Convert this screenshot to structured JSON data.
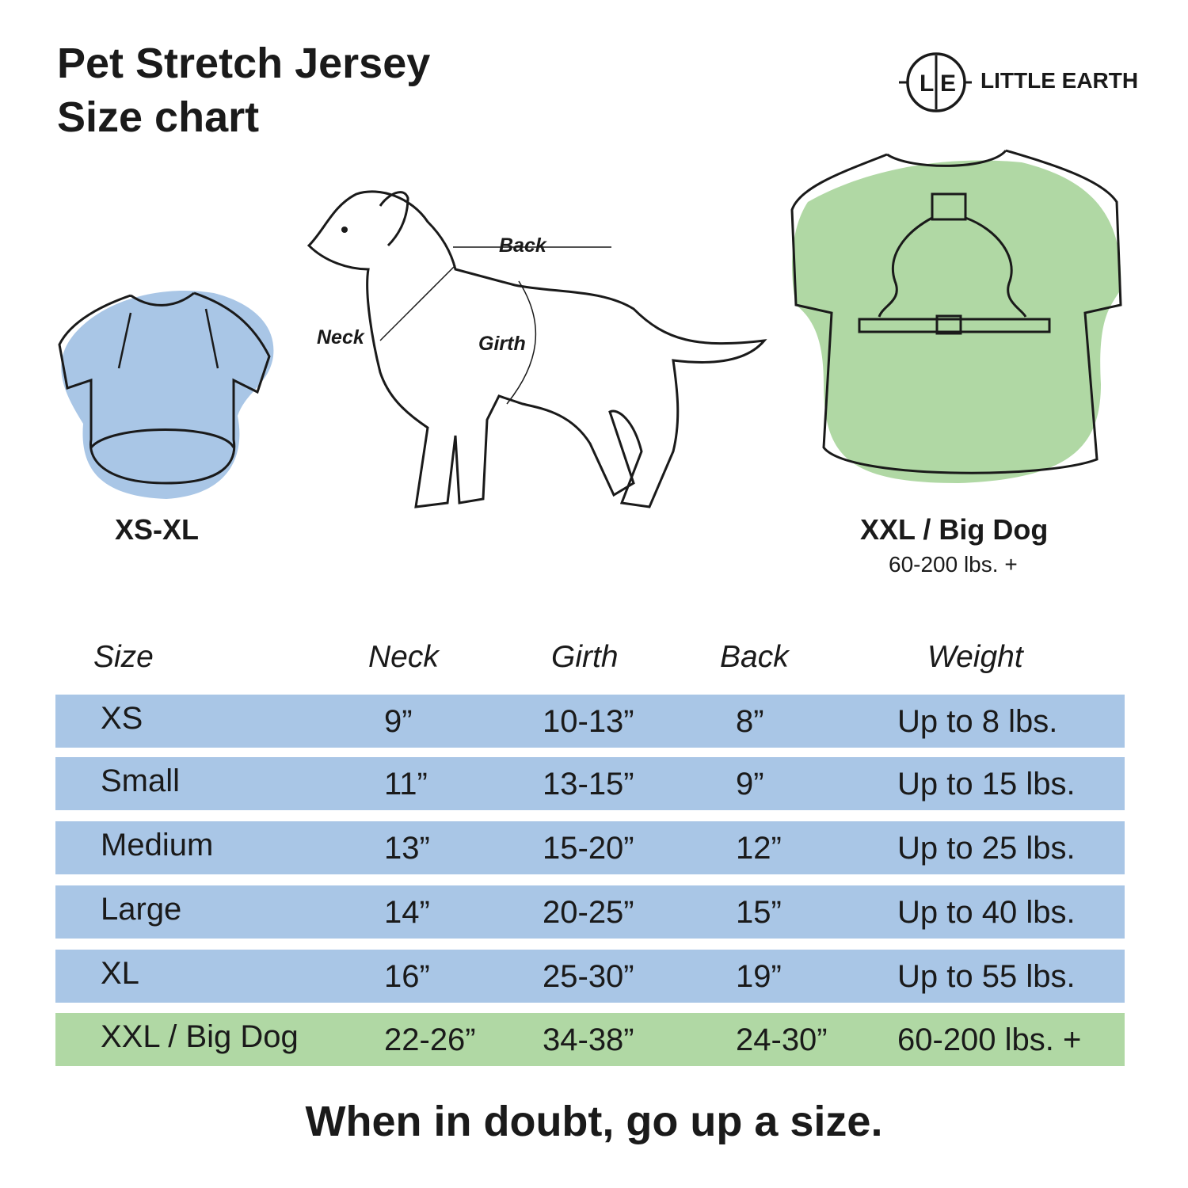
{
  "title": {
    "line1": "Pet Stretch Jersey",
    "line2": "Size chart"
  },
  "logo": {
    "monogram_l": "L",
    "monogram_e": "E",
    "text": "LITTLE EARTH"
  },
  "illustrations": {
    "small_shirt": {
      "caption": "XS-XL",
      "color": "#a9c6e6"
    },
    "dog": {
      "labels": {
        "back": "Back",
        "neck": "Neck",
        "girth": "Girth"
      }
    },
    "big_shirt": {
      "caption": "XXL / Big Dog",
      "subcaption": "60-200 lbs. +",
      "color": "#b0d8a4"
    }
  },
  "table": {
    "headers": [
      "Size",
      "Neck",
      "Girth",
      "Back",
      "Weight"
    ],
    "rows": [
      {
        "cells": [
          "XS",
          "9”",
          "10-13”",
          "8”",
          "Up to 8 lbs."
        ],
        "color": "#a9c6e6"
      },
      {
        "cells": [
          "Small",
          "11”",
          "13-15”",
          "9”",
          "Up to 15 lbs."
        ],
        "color": "#a9c6e6"
      },
      {
        "cells": [
          "Medium",
          "13”",
          "15-20”",
          "12”",
          "Up to 25 lbs."
        ],
        "color": "#a9c6e6"
      },
      {
        "cells": [
          "Large",
          "14”",
          "20-25”",
          "15”",
          "Up to 40 lbs."
        ],
        "color": "#a9c6e6"
      },
      {
        "cells": [
          "XL",
          "16”",
          "25-30”",
          "19”",
          "Up to 55 lbs."
        ],
        "color": "#a9c6e6"
      },
      {
        "cells": [
          "XXL / Big Dog",
          "22-26”",
          "34-38”",
          "24-30”",
          "60-200 lbs. +"
        ],
        "color": "#b0d8a4"
      }
    ]
  },
  "footer": "When in doubt, go up a size."
}
